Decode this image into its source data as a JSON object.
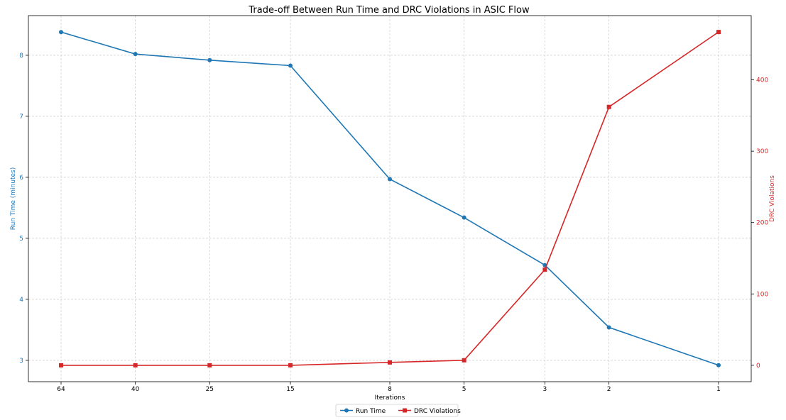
{
  "chart_data": {
    "type": "line",
    "title": "Trade-off Between Run Time and DRC Violations in ASIC Flow",
    "xlabel": "Iterations",
    "x_reversed": true,
    "x_scale": "log",
    "x": [
      64,
      40,
      25,
      15,
      8,
      5,
      3,
      2,
      1
    ],
    "x_tick_labels": [
      "64",
      "40",
      "25",
      "15",
      "8",
      "5",
      "3",
      "2",
      "1"
    ],
    "y_left": {
      "label": "Run Time (minutes)",
      "color": "#1f77b4",
      "ticks": [
        3,
        4,
        5,
        6,
        7,
        8
      ],
      "lim": [
        2.65,
        8.65
      ]
    },
    "y_right": {
      "label": "DRC Violations",
      "color": "#d62728",
      "ticks": [
        0,
        100,
        200,
        300,
        400
      ],
      "lim": [
        -23,
        490
      ]
    },
    "series": [
      {
        "name": "Run Time",
        "axis": "left",
        "color": "#1f77b4",
        "marker": "circle",
        "values": [
          8.38,
          8.02,
          7.92,
          7.83,
          5.97,
          5.34,
          4.56,
          3.54,
          2.92
        ]
      },
      {
        "name": "DRC Violations",
        "axis": "right",
        "color": "#d62728",
        "marker": "square",
        "values": [
          0,
          0,
          0,
          0,
          4,
          7,
          134,
          362,
          467
        ]
      }
    ],
    "grid": true,
    "legend_position": "bottom-center"
  }
}
